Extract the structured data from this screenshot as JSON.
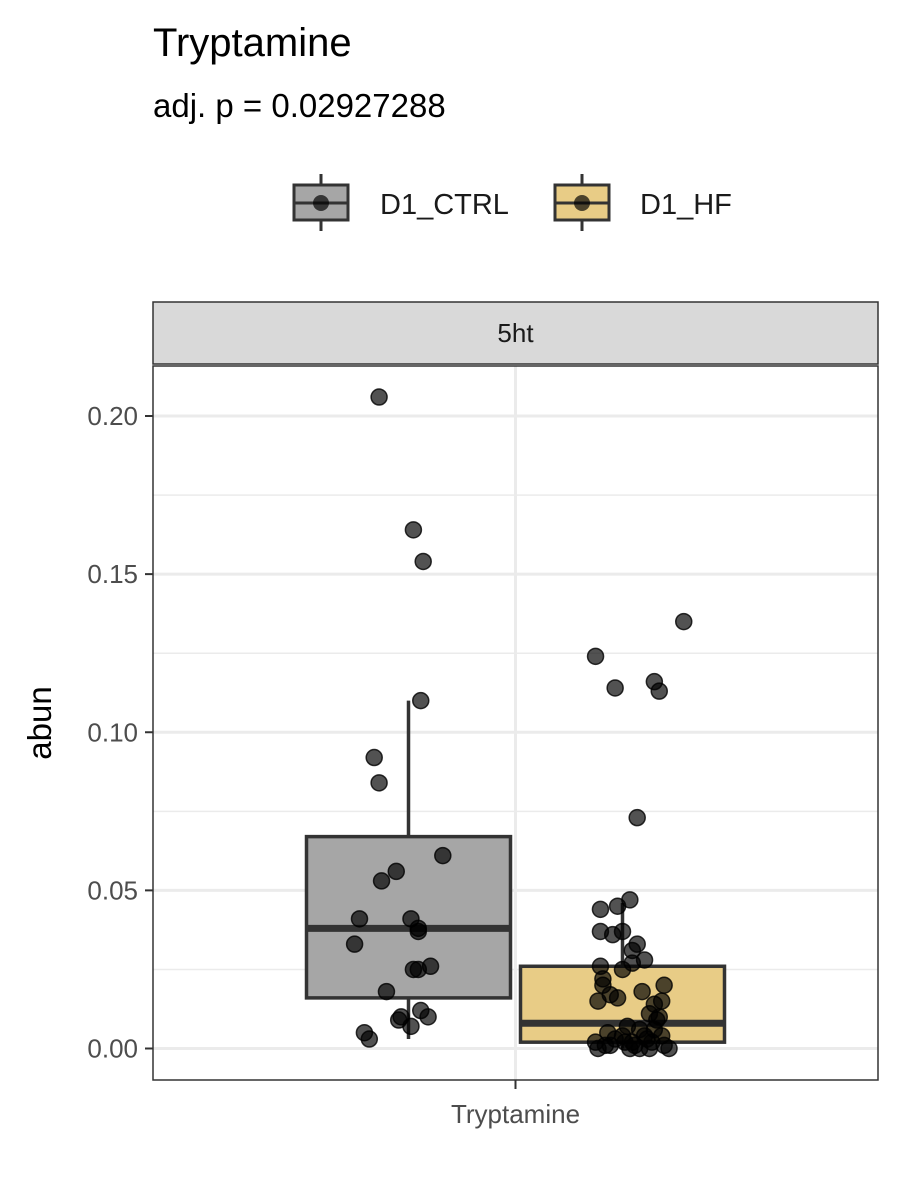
{
  "chart_data": {
    "type": "box",
    "title": "Tryptamine",
    "subtitle": "adj. p = 0.02927288",
    "facet_label": "5ht",
    "xlabel": "",
    "ylabel": "abun",
    "categories": [
      "Tryptamine"
    ],
    "ylim": [
      -0.01,
      0.215
    ],
    "yticks": [
      0.0,
      0.05,
      0.1,
      0.15,
      0.2
    ],
    "ytick_labels": [
      "0.00",
      "0.05",
      "0.10",
      "0.15",
      "0.20"
    ],
    "xtick_labels": [
      "Tryptamine"
    ],
    "grid": true,
    "legend_position": "top",
    "series": [
      {
        "name": "D1_CTRL",
        "color": "#a6a6a6",
        "box": {
          "q1": 0.016,
          "median": 0.038,
          "q3": 0.067,
          "whisker_low": 0.003,
          "whisker_high": 0.11
        },
        "points": [
          [
            -0.12,
            0.206
          ],
          [
            0.02,
            0.164
          ],
          [
            0.06,
            0.154
          ],
          [
            0.05,
            0.11
          ],
          [
            -0.14,
            0.092
          ],
          [
            -0.12,
            0.084
          ],
          [
            0.14,
            0.061
          ],
          [
            -0.05,
            0.056
          ],
          [
            -0.11,
            0.053
          ],
          [
            -0.2,
            0.041
          ],
          [
            0.01,
            0.041
          ],
          [
            0.04,
            0.038
          ],
          [
            0.04,
            0.037
          ],
          [
            -0.22,
            0.033
          ],
          [
            0.09,
            0.026
          ],
          [
            0.04,
            0.025
          ],
          [
            0.02,
            0.025
          ],
          [
            -0.09,
            0.018
          ],
          [
            0.05,
            0.012
          ],
          [
            -0.03,
            0.01
          ],
          [
            0.08,
            0.01
          ],
          [
            -0.04,
            0.009
          ],
          [
            0.01,
            0.007
          ],
          [
            -0.18,
            0.005
          ],
          [
            -0.16,
            0.003
          ]
        ]
      },
      {
        "name": "D1_HF",
        "color": "#e8cc86",
        "box": {
          "q1": 0.002,
          "median": 0.008,
          "q3": 0.026,
          "whisker_low": 0.0,
          "whisker_high": 0.046
        },
        "points": [
          [
            0.25,
            0.135
          ],
          [
            -0.11,
            0.124
          ],
          [
            0.13,
            0.116
          ],
          [
            0.15,
            0.113
          ],
          [
            -0.03,
            0.114
          ],
          [
            0.06,
            0.073
          ],
          [
            0.03,
            0.047
          ],
          [
            -0.09,
            0.044
          ],
          [
            -0.02,
            0.045
          ],
          [
            -0.09,
            0.037
          ],
          [
            -0.04,
            0.036
          ],
          [
            0.0,
            0.037
          ],
          [
            0.06,
            0.033
          ],
          [
            0.04,
            0.031
          ],
          [
            -0.09,
            0.026
          ],
          [
            -0.08,
            0.022
          ],
          [
            0.09,
            0.028
          ],
          [
            0.04,
            0.027
          ],
          [
            0.0,
            0.025
          ],
          [
            -0.08,
            0.02
          ],
          [
            0.08,
            0.018
          ],
          [
            -0.05,
            0.017
          ],
          [
            -0.02,
            0.016
          ],
          [
            0.17,
            0.02
          ],
          [
            0.16,
            0.015
          ],
          [
            0.13,
            0.014
          ],
          [
            -0.1,
            0.015
          ],
          [
            0.11,
            0.011
          ],
          [
            0.02,
            0.007
          ],
          [
            0.07,
            0.006
          ],
          [
            -0.06,
            0.005
          ],
          [
            0.14,
            0.009
          ],
          [
            0.09,
            0.004
          ],
          [
            -0.03,
            0.003
          ],
          [
            0.01,
            0.002
          ],
          [
            -0.11,
            0.002
          ],
          [
            0.05,
            0.001
          ],
          [
            -0.07,
            0.001
          ],
          [
            0.12,
            0.002
          ],
          [
            0.17,
            0.001
          ],
          [
            0.1,
            0.003
          ],
          [
            0.13,
            0.006
          ],
          [
            0.16,
            0.004
          ],
          [
            0.03,
            0.0
          ],
          [
            -0.1,
            0.0
          ],
          [
            0.07,
            0.0
          ],
          [
            0.19,
            0.0
          ],
          [
            0.0,
            0.004
          ],
          [
            -0.05,
            0.001
          ],
          [
            0.11,
            0.0
          ],
          [
            0.04,
            0.002
          ],
          [
            0.15,
            0.01
          ]
        ]
      }
    ]
  }
}
